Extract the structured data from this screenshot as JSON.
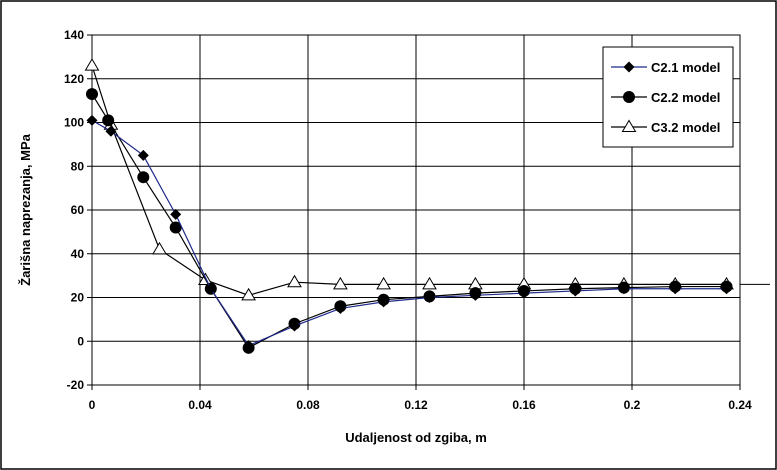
{
  "chart_data": {
    "type": "line",
    "title": "",
    "xlabel": "Udaljenost od zgiba, m",
    "ylabel": "Žarišna naprezanja, MPa",
    "xlim": [
      0,
      0.24
    ],
    "ylim": [
      -20,
      140
    ],
    "xticks": [
      0,
      0.04,
      0.08,
      0.12,
      0.16,
      0.2,
      0.24
    ],
    "xtick_labels": [
      "0",
      "0.04",
      "0.08",
      "0.12",
      "0.16",
      "0.2",
      "0.24"
    ],
    "yticks": [
      -20,
      0,
      20,
      40,
      60,
      80,
      100,
      120,
      140
    ],
    "ytick_labels": [
      "-20",
      "0",
      "20",
      "40",
      "60",
      "80",
      "100",
      "120",
      "140"
    ],
    "grid": true,
    "legend_position": "top-right",
    "series": [
      {
        "name": "C2.1 model",
        "marker": "diamond",
        "line_color": "#1f2a8a",
        "marker_color": "#000000",
        "points": [
          [
            0,
            101
          ],
          [
            0.007,
            96
          ],
          [
            0.019,
            85
          ],
          [
            0.031,
            58
          ],
          [
            0.044,
            24
          ],
          [
            0.058,
            -2
          ],
          [
            0.075,
            7
          ],
          [
            0.092,
            15
          ],
          [
            0.108,
            18
          ],
          [
            0.125,
            20
          ],
          [
            0.142,
            21
          ],
          [
            0.16,
            22
          ],
          [
            0.179,
            23
          ],
          [
            0.197,
            24
          ],
          [
            0.216,
            24
          ],
          [
            0.235,
            24
          ]
        ]
      },
      {
        "name": "C2.2 model",
        "marker": "circle",
        "line_color": "#000000",
        "marker_color": "#000000",
        "points": [
          [
            0,
            113
          ],
          [
            0.006,
            101
          ],
          [
            0.019,
            75
          ],
          [
            0.031,
            52
          ],
          [
            0.044,
            24
          ],
          [
            0.058,
            -3
          ],
          [
            0.075,
            8
          ],
          [
            0.092,
            16
          ],
          [
            0.108,
            19
          ],
          [
            0.125,
            20.5
          ],
          [
            0.142,
            22
          ],
          [
            0.16,
            23
          ],
          [
            0.179,
            24
          ],
          [
            0.197,
            24.5
          ],
          [
            0.216,
            25
          ],
          [
            0.235,
            25
          ]
        ]
      },
      {
        "name": "C3.2 model",
        "marker": "triangle-open",
        "line_color": "#000000",
        "marker_color": "#000000",
        "points": [
          [
            0,
            126
          ],
          [
            0.007,
            99
          ],
          [
            0.025,
            42
          ],
          [
            0.042,
            28
          ],
          [
            0.058,
            21
          ],
          [
            0.075,
            27
          ],
          [
            0.092,
            26
          ],
          [
            0.108,
            26
          ],
          [
            0.125,
            26
          ],
          [
            0.142,
            26
          ],
          [
            0.16,
            26
          ],
          [
            0.179,
            26
          ],
          [
            0.197,
            26
          ],
          [
            0.216,
            26
          ],
          [
            0.235,
            26
          ]
        ]
      }
    ]
  }
}
